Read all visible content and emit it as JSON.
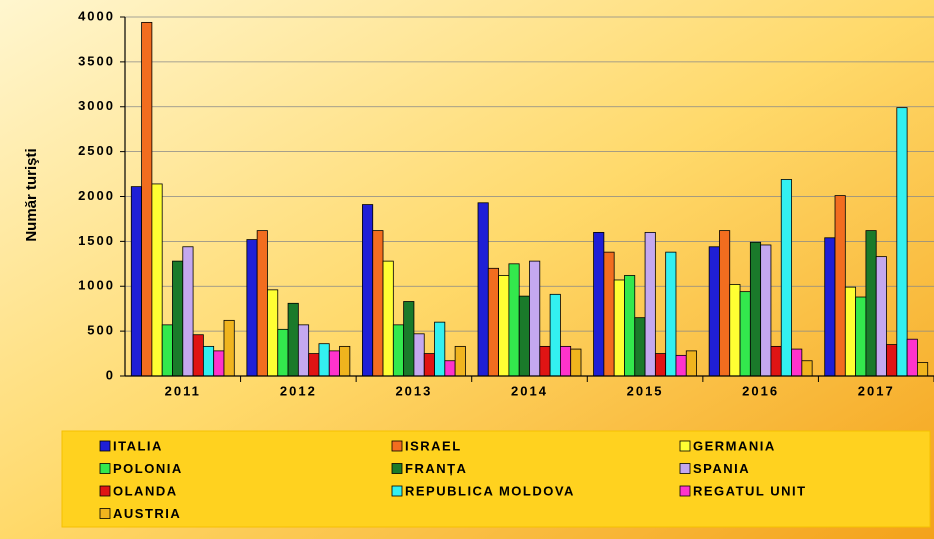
{
  "chart_data": {
    "type": "bar",
    "y_label": "Număr turişti",
    "categories": [
      "2011",
      "2012",
      "2013",
      "2014",
      "2015",
      "2016",
      "2017"
    ],
    "series": [
      {
        "name": "ITALIA",
        "color": "#1f1fd6",
        "values": [
          2110,
          1520,
          1910,
          1930,
          1600,
          1440,
          1540
        ]
      },
      {
        "name": "ISRAEL",
        "color": "#f26d1f",
        "values": [
          3940,
          1620,
          1620,
          1200,
          1380,
          1620,
          2010
        ]
      },
      {
        "name": "GERMANIA",
        "color": "#ffff33",
        "values": [
          2140,
          960,
          1280,
          1120,
          1070,
          1020,
          990
        ]
      },
      {
        "name": "POLONIA",
        "color": "#33e84d",
        "values": [
          570,
          520,
          570,
          1250,
          1120,
          940,
          880
        ]
      },
      {
        "name": "FRANȚA",
        "color": "#1a7a2a",
        "values": [
          1280,
          810,
          830,
          890,
          650,
          1490,
          1620
        ]
      },
      {
        "name": "SPANIA",
        "color": "#c4a8ef",
        "values": [
          1440,
          570,
          470,
          1280,
          1600,
          1460,
          1330
        ]
      },
      {
        "name": "OLANDA",
        "color": "#e01414",
        "values": [
          460,
          250,
          250,
          330,
          250,
          330,
          350
        ]
      },
      {
        "name": "REPUBLICA MOLDOVA",
        "color": "#33f0f0",
        "values": [
          330,
          360,
          600,
          910,
          1380,
          2190,
          2990
        ]
      },
      {
        "name": "REGATUL UNIT",
        "color": "#ff33cc",
        "values": [
          280,
          280,
          170,
          330,
          230,
          300,
          410
        ]
      },
      {
        "name": "AUSTRIA",
        "color": "#f0b41e",
        "values": [
          620,
          330,
          330,
          300,
          280,
          170,
          150
        ]
      }
    ],
    "ylim": [
      0,
      4000
    ],
    "yticks": [
      0,
      500,
      1000,
      1500,
      2000,
      2500,
      3000,
      3500,
      4000
    ],
    "grid": true
  }
}
